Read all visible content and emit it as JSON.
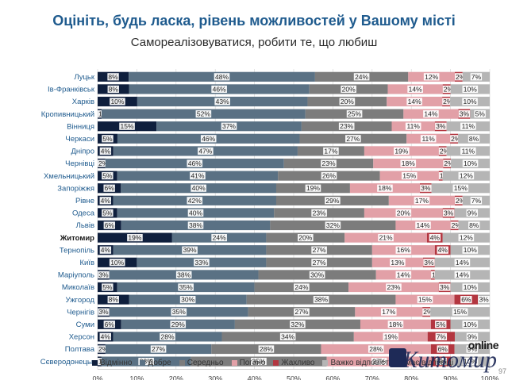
{
  "title": "Оцініть, будь ласка, рівень можливостей у Вашому місті",
  "subtitle": "Самореалізовуватися, робити те, що любиш",
  "watermark": {
    "online": "online",
    "city": "Житомир"
  },
  "page_number": "97",
  "colors": {
    "title": "#1f5b8e",
    "series": [
      "#0f1f3d",
      "#5a7184",
      "#7c7c7c",
      "#e2a0a7",
      "#b33640",
      "#b5b5b5"
    ],
    "highlight_labels": "#1f5b8e"
  },
  "chart_data": {
    "type": "bar",
    "orientation": "horizontal-stacked-100",
    "categories": [
      "Луцьк",
      "Ів-Франківськ",
      "Харків",
      "Кропивницький",
      "Вінниця",
      "Черкаси",
      "Дніпро",
      "Чернівці",
      "Хмельницький",
      "Запоріжжя",
      "Рівне",
      "Одеса",
      "Львів",
      "Житомир",
      "Тернопіль",
      "Київ",
      "Маріуполь",
      "Миколаїв",
      "Ужгород",
      "Чернігів",
      "Суми",
      "Херсон",
      "Полтава",
      "Сєверодонецьк"
    ],
    "series": [
      {
        "name": "Відмінно",
        "values": [
          8,
          8,
          10,
          1,
          15,
          5,
          4,
          2,
          5,
          6,
          4,
          5,
          6,
          19,
          4,
          10,
          3,
          5,
          8,
          3,
          6,
          4,
          2,
          1
        ]
      },
      {
        "name": "Добре",
        "values": [
          48,
          46,
          43,
          52,
          37,
          46,
          47,
          46,
          41,
          40,
          42,
          40,
          38,
          24,
          39,
          33,
          38,
          35,
          30,
          35,
          29,
          28,
          27,
          23
        ]
      },
      {
        "name": "Середньо",
        "values": [
          24,
          20,
          20,
          25,
          23,
          27,
          17,
          23,
          26,
          19,
          29,
          23,
          32,
          20,
          27,
          27,
          30,
          24,
          38,
          27,
          32,
          34,
          28,
          35
        ]
      },
      {
        "name": "Погано",
        "values": [
          12,
          14,
          14,
          14,
          11,
          11,
          19,
          18,
          15,
          18,
          17,
          20,
          14,
          21,
          16,
          13,
          14,
          23,
          15,
          17,
          18,
          19,
          28,
          27
        ]
      },
      {
        "name": "Жахливо",
        "values": [
          2,
          2,
          2,
          3,
          3,
          2,
          2,
          2,
          1,
          3,
          2,
          3,
          2,
          4,
          4,
          3,
          1,
          3,
          6,
          2,
          5,
          7,
          6,
          5
        ]
      },
      {
        "name": "Важко відповісти/Немає відповіді",
        "values": [
          7,
          10,
          10,
          5,
          11,
          8,
          11,
          10,
          12,
          15,
          7,
          9,
          8,
          12,
          10,
          14,
          14,
          10,
          3,
          15,
          10,
          9,
          9,
          10
        ]
      }
    ],
    "xlim": [
      0,
      100
    ],
    "x_ticks": [
      "0%",
      "10%",
      "20%",
      "30%",
      "40%",
      "50%",
      "60%",
      "70%",
      "80%",
      "90%",
      "100%"
    ],
    "legend_position": "bottom",
    "grid": true,
    "highlight_category": "Житомир"
  }
}
